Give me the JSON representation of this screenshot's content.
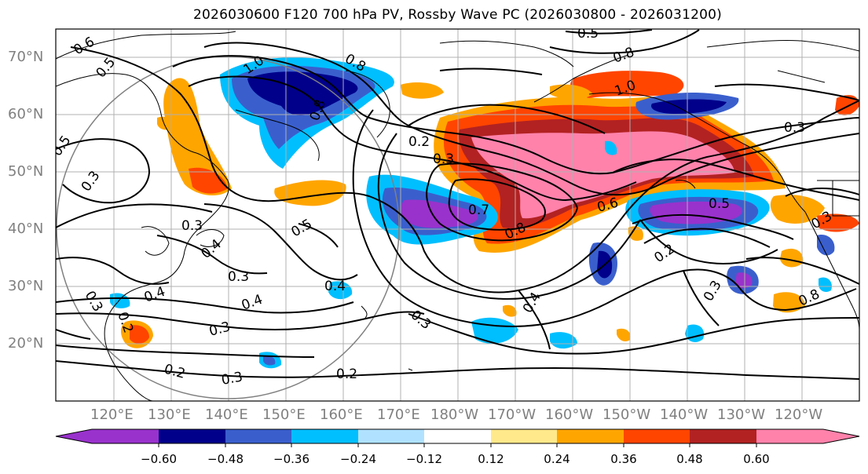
{
  "title": "2026030600 F120 700 hPa PV, Rossby Wave PC (2026030800 - 2026031200)",
  "lat_labels": [
    "70°N",
    "60°N",
    "50°N",
    "40°N",
    "30°N",
    "20°N"
  ],
  "lon_labels": [
    "120°E",
    "130°E",
    "140°E",
    "150°E",
    "160°E",
    "170°E",
    "180°W",
    "170°W",
    "160°W",
    "150°W",
    "140°W",
    "130°W",
    "120°W"
  ],
  "colorbar": {
    "ticks": [
      "−0.60",
      "−0.48",
      "−0.36",
      "−0.24",
      "−0.12",
      "0.12",
      "0.24",
      "0.36",
      "0.48",
      "0.60"
    ],
    "colors": [
      "#9932cc",
      "#00008b",
      "#3a5fcd",
      "#00bfff",
      "#b0e2ff",
      "#ffffff",
      "#ffe98a",
      "#ffa500",
      "#ff4500",
      "#b22222",
      "#ff82ab"
    ]
  },
  "contour_labels": [
    "0.6",
    "0.5",
    "1.0",
    "0.8",
    "0.5",
    "0.8",
    "1.0",
    "0.5",
    "0.3",
    "0.3",
    "0.2",
    "0.3",
    "0.7",
    "0.6",
    "0.5",
    "0.8",
    "0.3",
    "0.5",
    "0.4",
    "0.3",
    "0.3",
    "0.4",
    "0.4",
    "0.2",
    "0.3",
    "0.3",
    "0.2",
    "0.3",
    "0.2",
    "0.4",
    "0.3",
    "0.4",
    "0.2",
    "0.3",
    "0.8",
    "0.8"
  ]
}
